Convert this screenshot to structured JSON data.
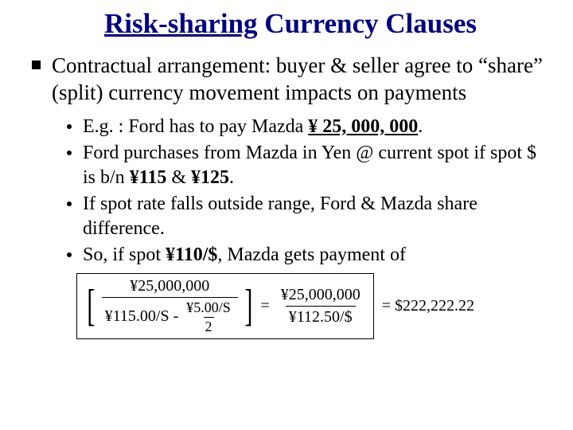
{
  "title_underlined": "Risk-sharing",
  "title_rest": " Currency Clauses",
  "para1": "Contractual arrangement: buyer & seller agree to “share” (split) currency movement impacts on payments",
  "b1_a": "E.g. : Ford has to pay Mazda ",
  "b1_ul": "¥ 25, 000, 000",
  "b1_c": ".",
  "b2_a": "Ford purchases from Mazda in Yen @ current spot if spot $ is b/n  ",
  "b2_v1": "¥115",
  "b2_mid": " & ",
  "b2_v2": "¥125",
  "b2_end": ".",
  "b3": "If spot rate falls outside range, Ford & Mazda share difference.",
  "b4_a": "So, if spot ",
  "b4_v": "¥110/$",
  "b4_c": ", Mazda gets payment of",
  "formula": {
    "left_num": "¥25,000,000",
    "left_den_a": "¥115.00/S - ",
    "left_den_inner_num": "¥5.00/S",
    "left_den_inner_den": "2",
    "right_num": "¥25,000,000",
    "right_den": "¥112.50/$",
    "result": "= $222,222.22"
  }
}
